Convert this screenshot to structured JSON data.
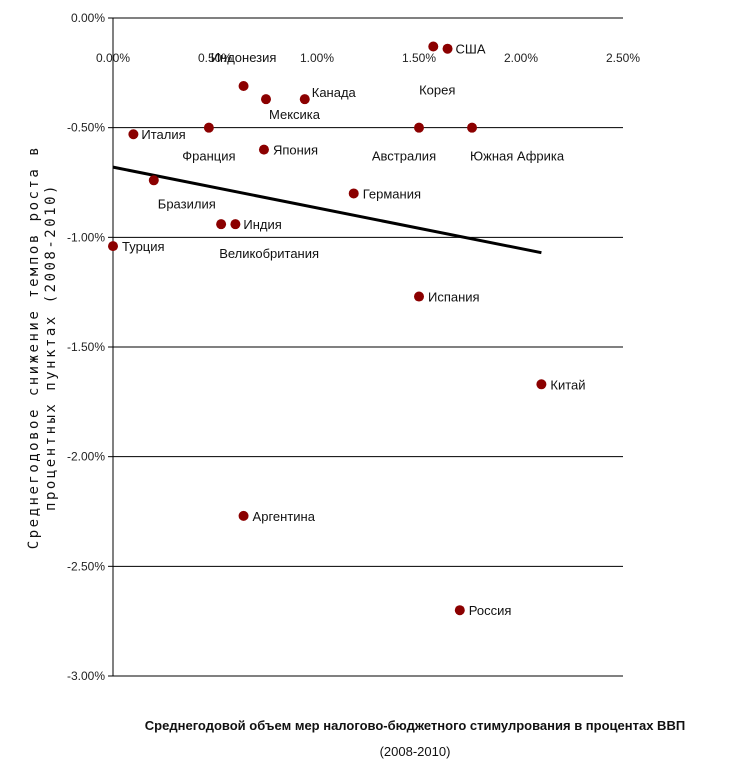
{
  "chart_data": {
    "type": "scatter",
    "title": "",
    "xlabel": "Среднегодовой объем мер налогово-бюджетного стимулрования в процентах ВВП",
    "xlabel_line2": "(2008-2010)",
    "ylabel": "Среднегодовое снижение темпов роста в",
    "ylabel_line2": "процентных пунктах (2008-2010)",
    "xlim": [
      0,
      0.025
    ],
    "ylim": [
      -0.03,
      0
    ],
    "x_ticks": [
      "0.00%",
      "0.50%",
      "1.00%",
      "1.50%",
      "2.00%",
      "2.50%"
    ],
    "y_ticks": [
      "0.00%",
      "-0.50%",
      "-1.00%",
      "-1.50%",
      "-2.00%",
      "-2.50%",
      "-3.00%"
    ],
    "x_tick_values": [
      0,
      0.005,
      0.01,
      0.015,
      0.02,
      0.025
    ],
    "y_tick_values": [
      0,
      -0.005,
      -0.01,
      -0.015,
      -0.02,
      -0.025,
      -0.03
    ],
    "grid": "horizontal",
    "marker_color": "#8b0000",
    "trend_color": "#000000",
    "trendline": {
      "x": [
        0,
        0.021
      ],
      "y": [
        -0.0068,
        -0.0107
      ]
    },
    "points": [
      {
        "name": "Турция",
        "x": 0.0,
        "y": -0.0104
      },
      {
        "name": "Италия",
        "x": 0.001,
        "y": -0.0053
      },
      {
        "name": "Бразилия",
        "x": 0.002,
        "y": -0.0074
      },
      {
        "name": "Франция",
        "x": 0.0047,
        "y": -0.005
      },
      {
        "name": "Великобритания",
        "x": 0.0053,
        "y": -0.0094
      },
      {
        "name": "Индия",
        "x": 0.006,
        "y": -0.0094
      },
      {
        "name": "Индонезия",
        "x": 0.0064,
        "y": -0.0031
      },
      {
        "name": "Аргентина",
        "x": 0.0064,
        "y": -0.0227
      },
      {
        "name": "Япония",
        "x": 0.0074,
        "y": -0.006
      },
      {
        "name": "Мексика",
        "x": 0.0075,
        "y": -0.0037
      },
      {
        "name": "Канада",
        "x": 0.0094,
        "y": -0.0037
      },
      {
        "name": "Германия",
        "x": 0.0118,
        "y": -0.008
      },
      {
        "name": "Австралия",
        "x": 0.015,
        "y": -0.005
      },
      {
        "name": "Испания",
        "x": 0.015,
        "y": -0.0127
      },
      {
        "name": "Корея",
        "x": 0.0157,
        "y": -0.0013
      },
      {
        "name": "США",
        "x": 0.0164,
        "y": -0.0014
      },
      {
        "name": "Россия",
        "x": 0.017,
        "y": -0.027
      },
      {
        "name": "Южная Африка",
        "x": 0.0176,
        "y": -0.005
      },
      {
        "name": "Китай",
        "x": 0.021,
        "y": -0.0167
      }
    ]
  }
}
